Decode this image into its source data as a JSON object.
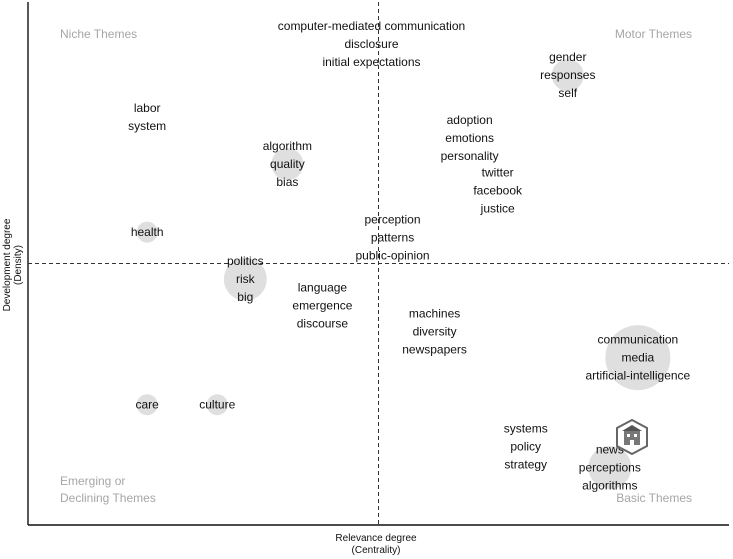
{
  "chart_data": {
    "type": "scatter",
    "subtype": "thematic-map",
    "xlabel": "Relevance degree",
    "xlabel_sub": "(Centrality)",
    "ylabel": "Development degree",
    "ylabel_sub": "(Density)",
    "xlim": [
      0,
      1
    ],
    "ylim": [
      0,
      1
    ],
    "median_lines": {
      "x": 0.5,
      "y": 0.5
    },
    "quadrants": {
      "top_left": "Niche Themes",
      "top_right": "Motor Themes",
      "bottom_left_line1": "Emerging or",
      "bottom_left_line2": "Declining Themes",
      "bottom_right": "Basic Themes"
    },
    "clusters": [
      {
        "labels": [
          "computer-mediated communication",
          "disclosure",
          "initial expectations"
        ],
        "x": 0.49,
        "y": 0.92,
        "size": 0
      },
      {
        "labels": [
          "labor",
          "system"
        ],
        "x": 0.17,
        "y": 0.78,
        "size": 0
      },
      {
        "labels": [
          "gender",
          "responses",
          "self"
        ],
        "x": 0.77,
        "y": 0.86,
        "size": 2
      },
      {
        "labels": [
          "algorithm",
          "quality",
          "bias"
        ],
        "x": 0.37,
        "y": 0.69,
        "size": 2
      },
      {
        "labels": [
          "adoption",
          "emotions",
          "personality"
        ],
        "x": 0.63,
        "y": 0.74,
        "size": 0
      },
      {
        "labels": [
          "twitter",
          "facebook",
          "justice"
        ],
        "x": 0.67,
        "y": 0.64,
        "size": 0
      },
      {
        "labels": [
          "perception",
          "patterns",
          "public-opinion"
        ],
        "x": 0.52,
        "y": 0.55,
        "size": 0
      },
      {
        "labels": [
          "health"
        ],
        "x": 0.17,
        "y": 0.56,
        "size": 1
      },
      {
        "labels": [
          "politics",
          "risk",
          "big"
        ],
        "x": 0.31,
        "y": 0.47,
        "size": 3
      },
      {
        "labels": [
          "language",
          "emergence",
          "discourse"
        ],
        "x": 0.42,
        "y": 0.42,
        "size": 0
      },
      {
        "labels": [
          "machines",
          "diversity",
          "newspapers"
        ],
        "x": 0.58,
        "y": 0.37,
        "size": 0
      },
      {
        "labels": [
          "communication",
          "media",
          "artificial-intelligence"
        ],
        "x": 0.87,
        "y": 0.32,
        "size": 5
      },
      {
        "labels": [
          "care"
        ],
        "x": 0.17,
        "y": 0.23,
        "size": 1
      },
      {
        "labels": [
          "culture"
        ],
        "x": 0.27,
        "y": 0.23,
        "size": 1
      },
      {
        "labels": [
          "systems",
          "policy",
          "strategy"
        ],
        "x": 0.71,
        "y": 0.15,
        "size": 0
      },
      {
        "labels": [
          "news",
          "perceptions",
          "algorithms"
        ],
        "x": 0.83,
        "y": 0.11,
        "size": 3
      }
    ]
  },
  "watermark_icon": "building-icon"
}
